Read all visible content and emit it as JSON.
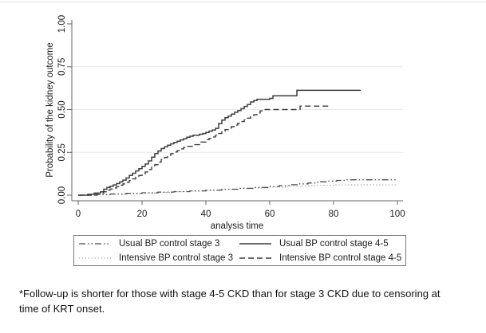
{
  "figure": {
    "footnote_line1": "*Follow-up is shorter for those with stage 4-5 CKD than for stage 3 CKD due to censoring at",
    "footnote_line2": "time of KRT onset."
  },
  "chart_data": {
    "type": "line",
    "subtype": "kaplan-meier-step",
    "title": "",
    "xlabel": "analysis time",
    "ylabel": "Probability of the kidney outcome",
    "xlim": [
      0,
      100
    ],
    "ylim": [
      0,
      1
    ],
    "grid": true,
    "grid_values": [
      0.25,
      0.5,
      0.75
    ],
    "legend_position": "bottom",
    "colors": {
      "axis": "#666666",
      "grid": "#e8e8e8",
      "dark_line": "#3d3d3d",
      "light_line": "#9c9c9c",
      "text": "#1a1a1a",
      "background": "#ffffff"
    },
    "xticks": [
      {
        "value": 0,
        "label": "0"
      },
      {
        "value": 20,
        "label": "20"
      },
      {
        "value": 40,
        "label": "40"
      },
      {
        "value": 60,
        "label": "60"
      },
      {
        "value": 80,
        "label": "80"
      },
      {
        "value": 100,
        "label": "100"
      }
    ],
    "yticks": [
      {
        "value": 0,
        "label": "0.00"
      },
      {
        "value": 0.25,
        "label": "0.25"
      },
      {
        "value": 0.5,
        "label": "0.50"
      },
      {
        "value": 0.75,
        "label": "0.75"
      },
      {
        "value": 1,
        "label": "1.00"
      }
    ],
    "series": [
      {
        "key": "usual-bp-stage3",
        "name": "Usual BP control stage 3",
        "style": "dash-dot-dot",
        "color": "#4d4d4d",
        "width": 1.3,
        "dash": "8 3 1.5 3 1.5 3",
        "points": [
          [
            0,
            0
          ],
          [
            6,
            0.003
          ],
          [
            10,
            0.007
          ],
          [
            15,
            0.011
          ],
          [
            20,
            0.014
          ],
          [
            25,
            0.018
          ],
          [
            30,
            0.021
          ],
          [
            35,
            0.025
          ],
          [
            40,
            0.03
          ],
          [
            45,
            0.035
          ],
          [
            50,
            0.04
          ],
          [
            55,
            0.045
          ],
          [
            60,
            0.051
          ],
          [
            63,
            0.056
          ],
          [
            66,
            0.061
          ],
          [
            69,
            0.066
          ],
          [
            72,
            0.071
          ],
          [
            75,
            0.078
          ],
          [
            78,
            0.082
          ],
          [
            81,
            0.086
          ],
          [
            84,
            0.09
          ],
          [
            100,
            0.09
          ]
        ]
      },
      {
        "key": "usual-bp-stage45",
        "name": "Usual BP control stage 4-5",
        "style": "solid",
        "color": "#3d3d3d",
        "width": 1.5,
        "dash": "",
        "points": [
          [
            0,
            0
          ],
          [
            3,
            0.005
          ],
          [
            5,
            0.012
          ],
          [
            7,
            0.02
          ],
          [
            8,
            0.035
          ],
          [
            9,
            0.045
          ],
          [
            10,
            0.052
          ],
          [
            11,
            0.06
          ],
          [
            12,
            0.068
          ],
          [
            13,
            0.078
          ],
          [
            14,
            0.088
          ],
          [
            15,
            0.1
          ],
          [
            16,
            0.115
          ],
          [
            17,
            0.128
          ],
          [
            18,
            0.142
          ],
          [
            19,
            0.155
          ],
          [
            20,
            0.168
          ],
          [
            21,
            0.182
          ],
          [
            22,
            0.2
          ],
          [
            23,
            0.222
          ],
          [
            24,
            0.243
          ],
          [
            25,
            0.258
          ],
          [
            26,
            0.272
          ],
          [
            27,
            0.283
          ],
          [
            28,
            0.292
          ],
          [
            29,
            0.3
          ],
          [
            30,
            0.308
          ],
          [
            31,
            0.315
          ],
          [
            32,
            0.323
          ],
          [
            33,
            0.33
          ],
          [
            34,
            0.338
          ],
          [
            35,
            0.344
          ],
          [
            36,
            0.35
          ],
          [
            38,
            0.356
          ],
          [
            39,
            0.36
          ],
          [
            40,
            0.366
          ],
          [
            41,
            0.374
          ],
          [
            42,
            0.38
          ],
          [
            43,
            0.39
          ],
          [
            44,
            0.418
          ],
          [
            45,
            0.438
          ],
          [
            46,
            0.452
          ],
          [
            47,
            0.462
          ],
          [
            48,
            0.473
          ],
          [
            49,
            0.484
          ],
          [
            50,
            0.494
          ],
          [
            51,
            0.505
          ],
          [
            52,
            0.518
          ],
          [
            53,
            0.53
          ],
          [
            54,
            0.544
          ],
          [
            55,
            0.552
          ],
          [
            56,
            0.56
          ],
          [
            60,
            0.565
          ],
          [
            61,
            0.58
          ],
          [
            68.5,
            0.612
          ],
          [
            88.5,
            0.612
          ]
        ]
      },
      {
        "key": "intensive-bp-stage3",
        "name": "Intensive BP control stage 3",
        "style": "dotted",
        "color": "#9c9c9c",
        "width": 1.1,
        "dash": "1.3 2.6",
        "points": [
          [
            0,
            0
          ],
          [
            6,
            0.002
          ],
          [
            10,
            0.005
          ],
          [
            15,
            0.008
          ],
          [
            20,
            0.012
          ],
          [
            25,
            0.016
          ],
          [
            30,
            0.02
          ],
          [
            35,
            0.024
          ],
          [
            40,
            0.028
          ],
          [
            45,
            0.033
          ],
          [
            50,
            0.038
          ],
          [
            55,
            0.042
          ],
          [
            60,
            0.047
          ],
          [
            65,
            0.052
          ],
          [
            70,
            0.056
          ],
          [
            75,
            0.058
          ],
          [
            80,
            0.06
          ],
          [
            100,
            0.062
          ]
        ]
      },
      {
        "key": "intensive-bp-stage45",
        "name": "Intensive BP control stage 4-5",
        "style": "dashed",
        "color": "#3d3d3d",
        "width": 1.4,
        "dash": "7 4",
        "points": [
          [
            0,
            0
          ],
          [
            4,
            0.005
          ],
          [
            6,
            0.012
          ],
          [
            8,
            0.02
          ],
          [
            9,
            0.03
          ],
          [
            10,
            0.036
          ],
          [
            11,
            0.042
          ],
          [
            12,
            0.05
          ],
          [
            13,
            0.058
          ],
          [
            14,
            0.066
          ],
          [
            15,
            0.075
          ],
          [
            16,
            0.085
          ],
          [
            17,
            0.095
          ],
          [
            18,
            0.105
          ],
          [
            19,
            0.115
          ],
          [
            20,
            0.125
          ],
          [
            21,
            0.136
          ],
          [
            22,
            0.15
          ],
          [
            23,
            0.164
          ],
          [
            24,
            0.178
          ],
          [
            25,
            0.193
          ],
          [
            26,
            0.208
          ],
          [
            27,
            0.22
          ],
          [
            28,
            0.232
          ],
          [
            29,
            0.243
          ],
          [
            30,
            0.252
          ],
          [
            31,
            0.26
          ],
          [
            32,
            0.27
          ],
          [
            33,
            0.278
          ],
          [
            34,
            0.285
          ],
          [
            36,
            0.295
          ],
          [
            38,
            0.31
          ],
          [
            40,
            0.324
          ],
          [
            41,
            0.331
          ],
          [
            42,
            0.34
          ],
          [
            43,
            0.35
          ],
          [
            44,
            0.36
          ],
          [
            45,
            0.373
          ],
          [
            46,
            0.383
          ],
          [
            47,
            0.392
          ],
          [
            48,
            0.4
          ],
          [
            49,
            0.41
          ],
          [
            50,
            0.42
          ],
          [
            51,
            0.43
          ],
          [
            52,
            0.44
          ],
          [
            53,
            0.45
          ],
          [
            54,
            0.46
          ],
          [
            55,
            0.47
          ],
          [
            56,
            0.48
          ],
          [
            57,
            0.492
          ],
          [
            58,
            0.5
          ],
          [
            69.5,
            0.52
          ],
          [
            78.5,
            0.52
          ]
        ]
      }
    ]
  }
}
